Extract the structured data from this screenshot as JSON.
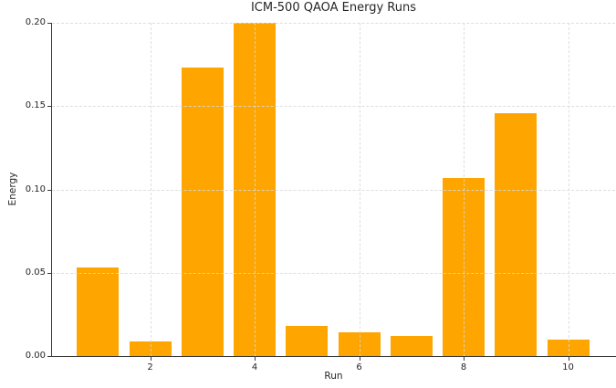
{
  "chart_data": {
    "type": "bar",
    "title": "ICM-500 QAOA Energy Runs",
    "xlabel": "Run",
    "ylabel": "Energy",
    "x": [
      1,
      2,
      3,
      4,
      5,
      6,
      7,
      8,
      9,
      10
    ],
    "values": [
      0.053,
      0.009,
      0.173,
      0.2,
      0.018,
      0.014,
      0.012,
      0.107,
      0.146,
      0.01
    ],
    "xticks": [
      2,
      4,
      6,
      8,
      10
    ],
    "yticks": [
      0.0,
      0.05,
      0.1,
      0.15,
      0.2
    ],
    "ytick_labels": [
      "0.00",
      "0.05",
      "0.10",
      "0.15",
      "0.20"
    ],
    "ylim": [
      0.0,
      0.2
    ],
    "bar_color": "#FFA500",
    "grid": true,
    "grid_style": "dashed",
    "grid_color": "#d9d9d9",
    "spine_color": "#3a3a3a",
    "text_color": "#262626",
    "background_color": "#ffffff",
    "legend": null
  }
}
